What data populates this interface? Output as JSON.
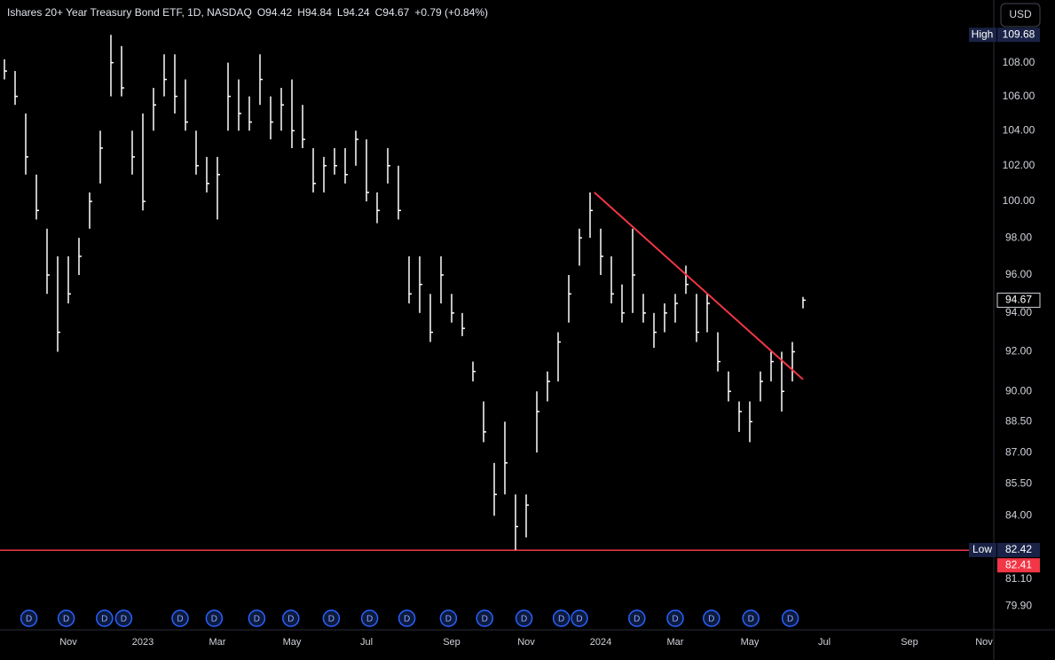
{
  "chart_data": {
    "type": "ohlc",
    "title": "Ishares 20+ Year Treasury Bond ETF, 1D, NASDAQ",
    "ohlc": [
      {
        "key": "O",
        "value": 94.42
      },
      {
        "key": "H",
        "value": 94.84
      },
      {
        "key": "L",
        "value": 94.24
      },
      {
        "key": "C",
        "value": 94.67
      }
    ],
    "change": "+0.79 (+0.84%)",
    "currency": "USD",
    "log_scale": true,
    "grid": false,
    "color": "#ffffff",
    "categories": [
      null,
      null,
      null,
      null,
      null,
      null,
      "Nov",
      null,
      null,
      null,
      null,
      null,
      null,
      "2023",
      null,
      null,
      null,
      null,
      null,
      null,
      "Mar",
      null,
      null,
      null,
      null,
      null,
      null,
      "May",
      null,
      null,
      null,
      null,
      null,
      null,
      "Jul",
      null,
      null,
      null,
      null,
      null,
      null,
      null,
      "Sep",
      null,
      null,
      null,
      null,
      null,
      null,
      "Nov",
      null,
      null,
      null,
      null,
      null,
      null,
      "2024",
      null,
      null,
      null,
      null,
      null,
      null,
      "Mar",
      null,
      null,
      null,
      null,
      null,
      null,
      "May",
      null,
      null,
      null,
      null,
      null,
      null,
      "Jul",
      null,
      null,
      null,
      null,
      null,
      null,
      null,
      "Sep",
      null,
      null,
      null,
      null,
      null,
      null,
      "Nov"
    ],
    "high": [
      108.2,
      107.5,
      105,
      101.5,
      98.5,
      97,
      97,
      98,
      100.5,
      104,
      109.68,
      109,
      104,
      105,
      106.5,
      108.5,
      108.5,
      107,
      104,
      102.5,
      102.5,
      108,
      107,
      106,
      108.5,
      106,
      106.5,
      107,
      105.5,
      103,
      102.5,
      103,
      103,
      104,
      103.5,
      100.5,
      103,
      102,
      97,
      97,
      95,
      97,
      95,
      94,
      91.5,
      89.5,
      86.5,
      88.5,
      85,
      85,
      90,
      91,
      93,
      96,
      98.5,
      100.5,
      98.5,
      97,
      95.5,
      98.5,
      95,
      94,
      94.5,
      95,
      96.5,
      95,
      95,
      93,
      91,
      89.5,
      89.5,
      91,
      92,
      92,
      92.5,
      94.84,
      null,
      null,
      null,
      null,
      null,
      null,
      null,
      null,
      null,
      null,
      null,
      null,
      null,
      null,
      null,
      null,
      null
    ],
    "low": [
      107,
      105.5,
      101.5,
      99,
      95,
      92,
      94.5,
      96,
      98.5,
      101,
      106,
      106,
      101.5,
      99.5,
      104,
      106,
      105,
      104,
      101.5,
      100.5,
      99,
      104,
      104,
      104,
      105.5,
      103.5,
      104,
      103,
      103,
      100.5,
      100.5,
      101.5,
      101,
      102,
      100,
      98.8,
      101,
      99,
      94.5,
      94,
      92.5,
      94.5,
      93.5,
      92.8,
      90.5,
      87.5,
      84,
      85,
      82.42,
      83,
      87,
      89.5,
      90.5,
      93.5,
      96.5,
      98,
      96,
      94.5,
      93.5,
      94,
      93.5,
      92.2,
      93,
      93.5,
      95,
      92.5,
      93,
      91,
      89.5,
      88,
      87.5,
      89.5,
      90.5,
      89,
      90.5,
      94.24,
      null,
      null,
      null,
      null,
      null,
      null,
      null,
      null,
      null,
      null,
      null,
      null,
      null,
      null,
      null,
      null,
      null
    ],
    "close": [
      107.5,
      106,
      102.5,
      99.5,
      96,
      93,
      95,
      97,
      100,
      103,
      108,
      106.5,
      102.5,
      100,
      105.5,
      107,
      106,
      104.5,
      102,
      101,
      101.5,
      106,
      105,
      104.5,
      107,
      104.5,
      105.5,
      104,
      103.5,
      101,
      102,
      102,
      101.5,
      103.5,
      100.5,
      99.5,
      102,
      99.5,
      95,
      95.5,
      93,
      96,
      94,
      93.2,
      91,
      88,
      85,
      86.5,
      83.5,
      84.5,
      89,
      90.5,
      92.5,
      95,
      98,
      99.5,
      97,
      95,
      94,
      96,
      94,
      93,
      94,
      94.5,
      95.5,
      93,
      94.5,
      91.5,
      90,
      89,
      88.5,
      90.5,
      91.5,
      90,
      92,
      94.67,
      null,
      null,
      null,
      null,
      null,
      null,
      null,
      null,
      null,
      null,
      null,
      null,
      null,
      null,
      null,
      null,
      null
    ],
    "ylim": [
      78.85,
      111.82
    ],
    "yticks": [
      {
        "value": 108,
        "label": "108.00"
      },
      {
        "value": 106,
        "label": "106.00"
      },
      {
        "value": 104,
        "label": "104.00"
      },
      {
        "value": 102,
        "label": "102.00"
      },
      {
        "value": 100,
        "label": "100.00"
      },
      {
        "value": 98,
        "label": "98.00"
      },
      {
        "value": 96,
        "label": "96.00"
      },
      {
        "value": 94,
        "label": "94.00"
      },
      {
        "value": 92,
        "label": "92.00"
      },
      {
        "value": 90,
        "label": "90.00"
      },
      {
        "value": 88.5,
        "label": "88.50"
      },
      {
        "value": 87,
        "label": "87.00"
      },
      {
        "value": 85.5,
        "label": "85.50"
      },
      {
        "value": 84,
        "label": "84.00"
      },
      {
        "value": 81.1,
        "label": "81.10"
      },
      {
        "value": 79.9,
        "label": "79.90"
      }
    ],
    "markers": [
      {
        "label": "High",
        "value": 109.68
      },
      {
        "label": "Low",
        "value": 82.42
      }
    ],
    "last_price": 94.67,
    "hline": {
      "value": 82.41,
      "color": "#f23645"
    },
    "trendline": {
      "x": [
        55.4,
        75
      ],
      "y": [
        100.5,
        90.6
      ],
      "color": "#f23645"
    },
    "dividends": {
      "label": "D",
      "x": [
        2.3,
        5.8,
        9.4,
        11.2,
        16.5,
        19.7,
        23.7,
        26.9,
        30.7,
        34.3,
        37.8,
        41.7,
        45.1,
        48.8,
        52.3,
        54,
        59.4,
        63,
        66.4,
        70.1,
        73.8
      ]
    }
  }
}
